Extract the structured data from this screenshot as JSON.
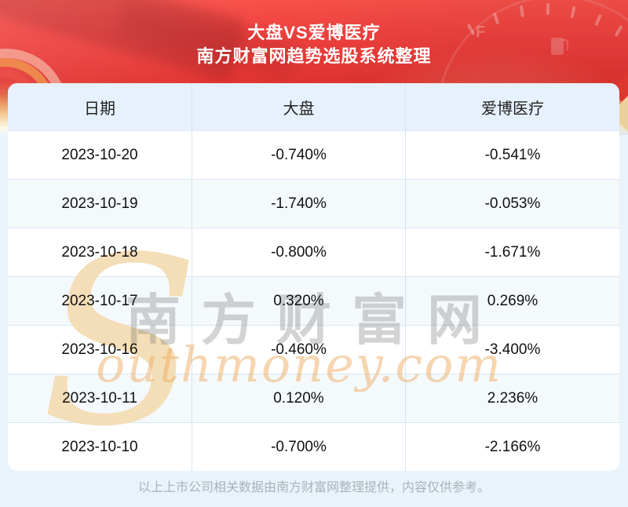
{
  "header": {
    "title": "大盘VS爱博医疗",
    "subtitle": "南方财富网趋势选股系统整理",
    "gauge_label": "F"
  },
  "watermark": {
    "s_glyph": "S",
    "latin": "outhmoney.com",
    "chinese": "南方财富网"
  },
  "table": {
    "headers": [
      "日期",
      "大盘",
      "爱博医疗"
    ],
    "rows": [
      {
        "date": "2023-10-20",
        "market": "-0.740%",
        "stock": "-0.541%"
      },
      {
        "date": "2023-10-19",
        "market": "-1.740%",
        "stock": "-0.053%"
      },
      {
        "date": "2023-10-18",
        "market": "-0.800%",
        "stock": "-1.671%"
      },
      {
        "date": "2023-10-17",
        "market": "0.320%",
        "stock": "0.269%"
      },
      {
        "date": "2023-10-16",
        "market": "-0.460%",
        "stock": "-3.400%"
      },
      {
        "date": "2023-10-11",
        "market": "0.120%",
        "stock": "2.236%"
      },
      {
        "date": "2023-10-10",
        "market": "-0.700%",
        "stock": "-2.166%"
      }
    ]
  },
  "footer": {
    "disclaimer": "以上上市公司相关数据由南方财富网整理提供，内容仅供参考。"
  },
  "colors": {
    "banner_red": "#e83a37",
    "banner_cream": "#f9e7c2",
    "page_bg": "#e9f3fc",
    "table_header_bg": "#e7f1fd",
    "row_alt_bg": "#f4f9fc",
    "row_border": "#d9e7f5",
    "watermark_gray": "#6e6e6e",
    "watermark_orange": "#eeac62",
    "footer_text": "#a9b2bb"
  },
  "chart_data": {
    "type": "table",
    "title": "大盘VS爱博医疗",
    "subtitle": "南方财富网趋势选股系统整理",
    "columns": [
      "日期",
      "大盘",
      "爱博医疗"
    ],
    "rows": [
      [
        "2023-10-20",
        "-0.740%",
        "-0.541%"
      ],
      [
        "2023-10-19",
        "-1.740%",
        "-0.053%"
      ],
      [
        "2023-10-18",
        "-0.800%",
        "-1.671%"
      ],
      [
        "2023-10-17",
        "0.320%",
        "0.269%"
      ],
      [
        "2023-10-16",
        "-0.460%",
        "-3.400%"
      ],
      [
        "2023-10-11",
        "0.120%",
        "2.236%"
      ],
      [
        "2023-10-10",
        "-0.700%",
        "-2.166%"
      ]
    ],
    "series": [
      {
        "name": "大盘",
        "values": [
          -0.74,
          -1.74,
          -0.8,
          0.32,
          -0.46,
          0.12,
          -0.7
        ]
      },
      {
        "name": "爱博医疗",
        "values": [
          -0.541,
          -0.053,
          -1.671,
          0.269,
          -3.4,
          2.236,
          -2.166
        ]
      }
    ],
    "x": [
      "2023-10-20",
      "2023-10-19",
      "2023-10-18",
      "2023-10-17",
      "2023-10-16",
      "2023-10-11",
      "2023-10-10"
    ],
    "unit": "%"
  }
}
